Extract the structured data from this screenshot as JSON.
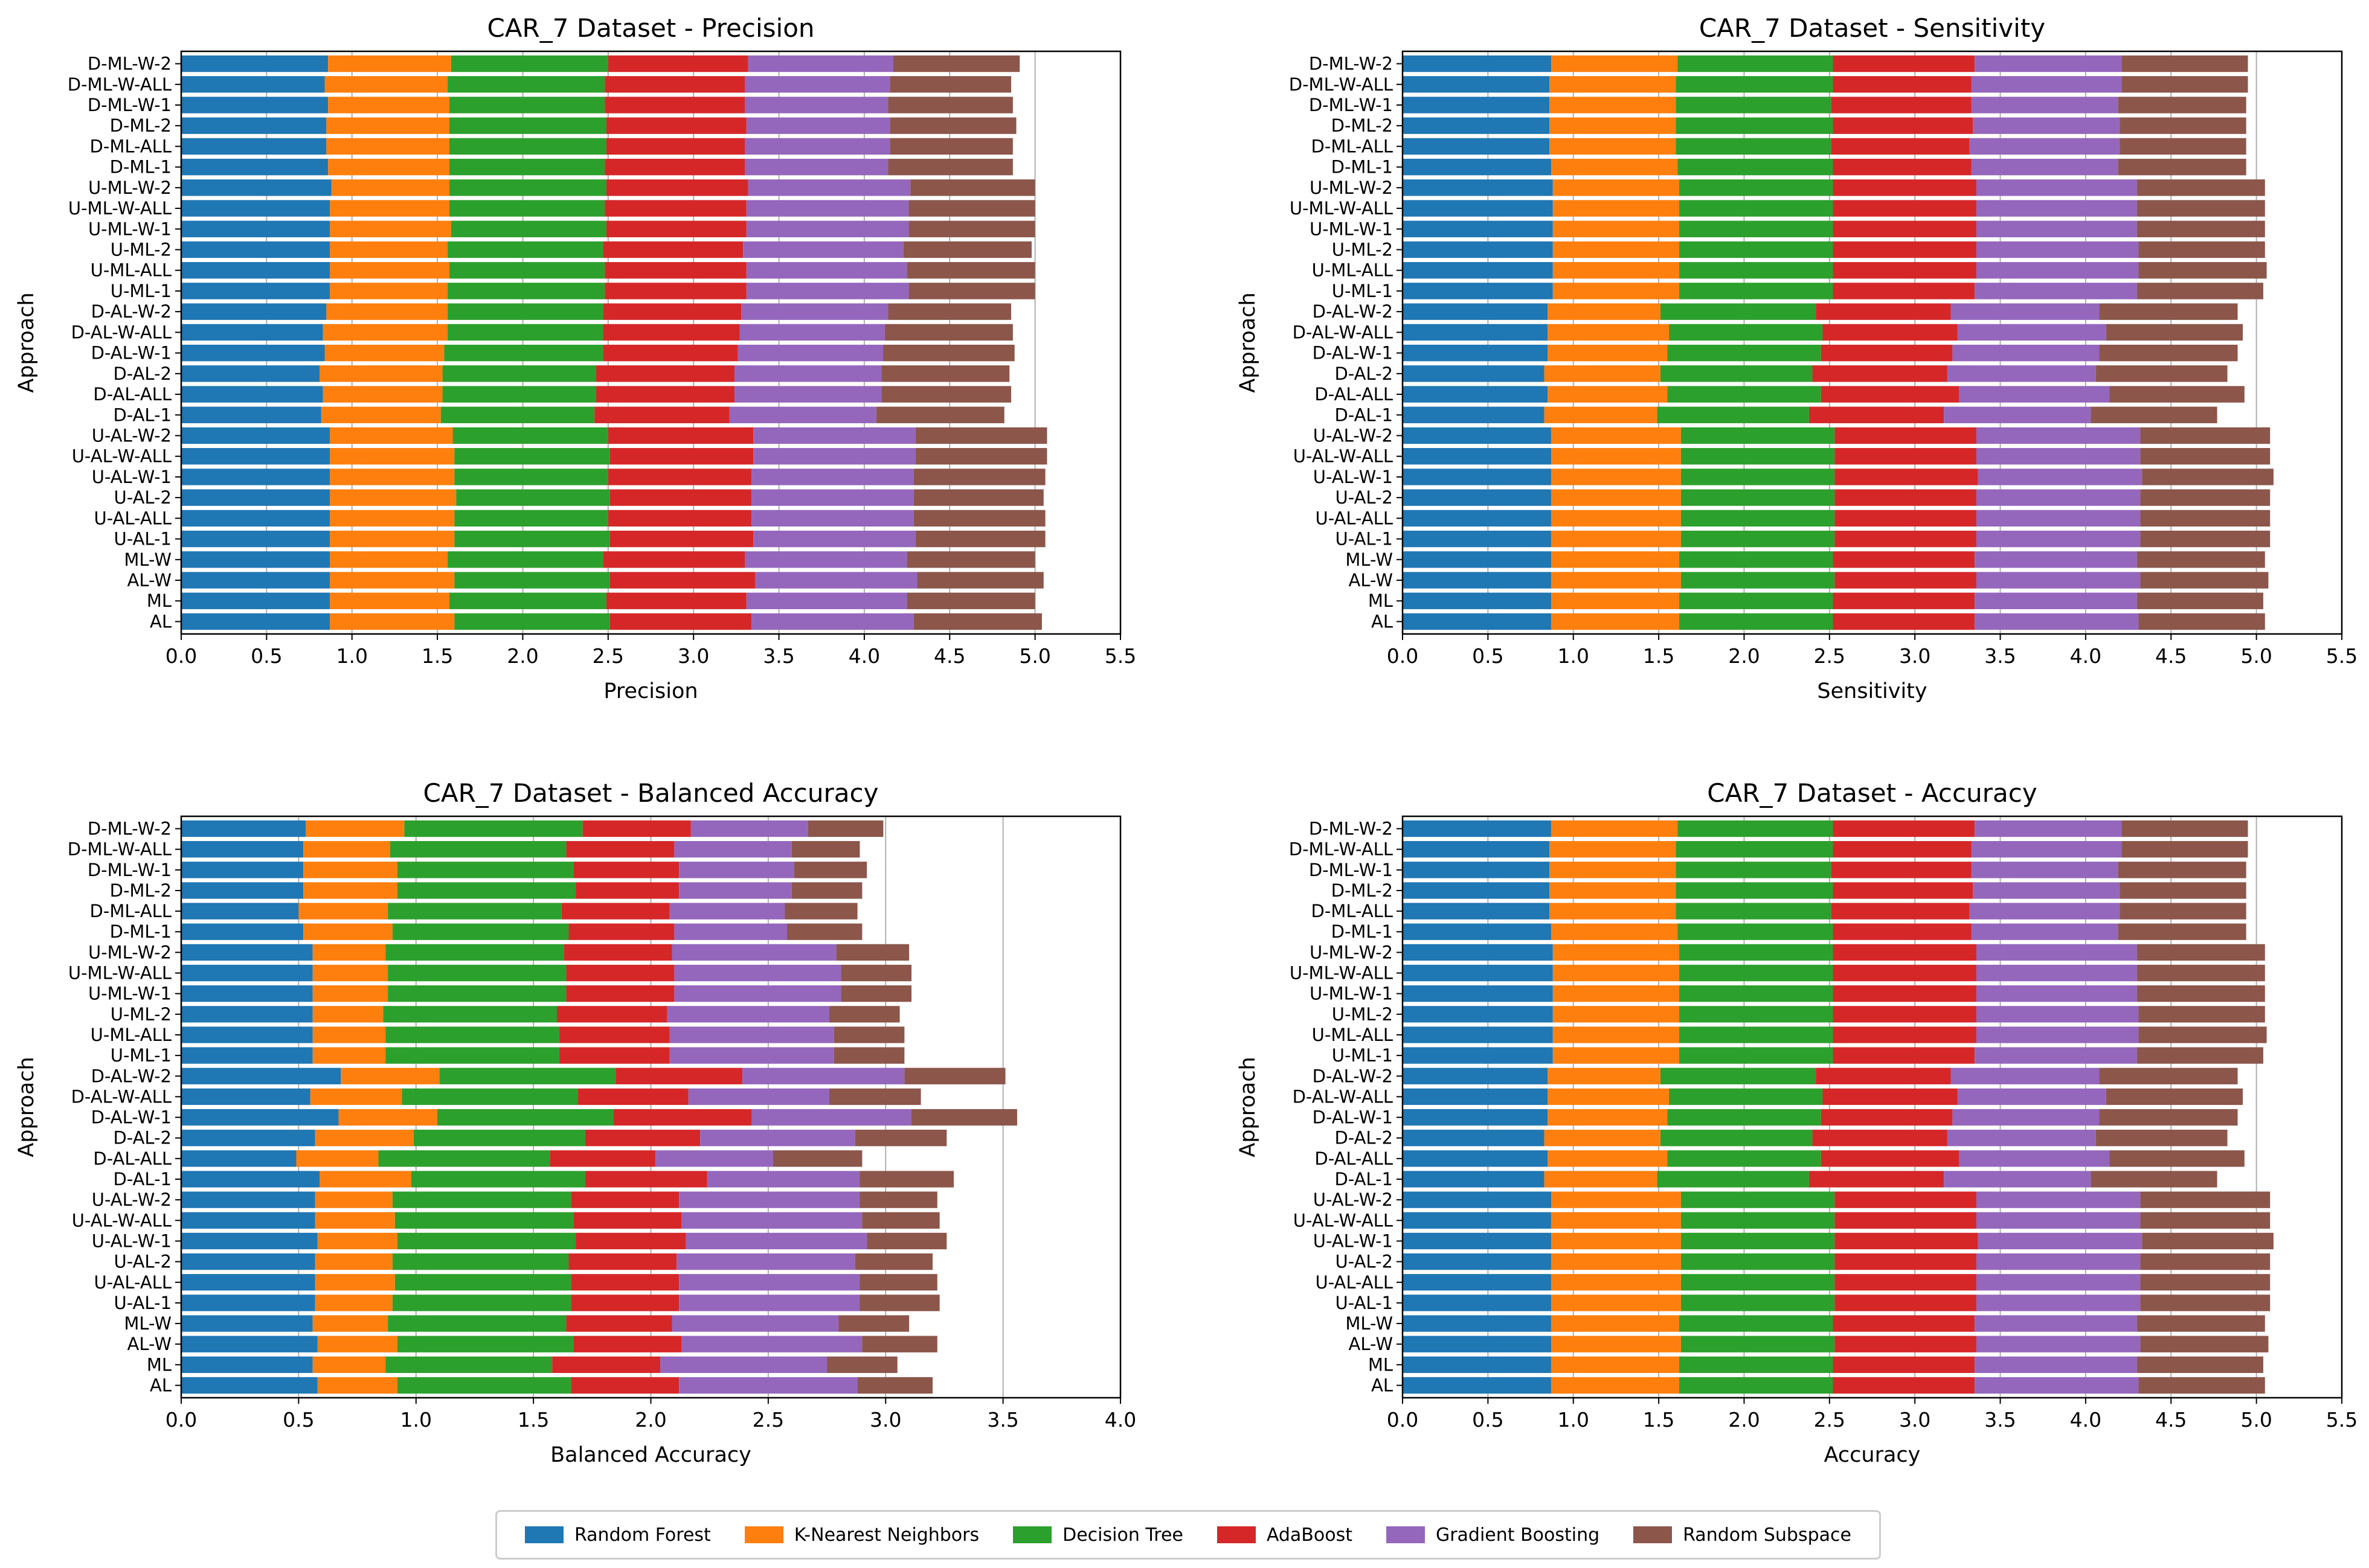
{
  "colors": {
    "Random Forest": "#1f77b4",
    "K-Nearest Neighbors": "#ff7f0e",
    "Decision Tree": "#2ca02c",
    "AdaBoost": "#d62728",
    "Gradient Boosting": "#9467bd",
    "Random Subspace": "#8c564b"
  },
  "legend": [
    "Random Forest",
    "K-Nearest Neighbors",
    "Decision Tree",
    "AdaBoost",
    "Gradient Boosting",
    "Random Subspace"
  ],
  "chart_data": [
    {
      "type": "bar",
      "orientation": "horizontal",
      "stacked": true,
      "title": "CAR_7 Dataset - Precision",
      "xlabel": "Precision",
      "ylabel": "Approach",
      "xlim": [
        0,
        5.5
      ],
      "xticks": [
        "0.0",
        "0.5",
        "1.0",
        "1.5",
        "2.0",
        "2.5",
        "3.0",
        "3.5",
        "4.0",
        "4.5",
        "5.0",
        "5.5"
      ],
      "grid": "vertical",
      "categories": [
        "D-ML-W-2",
        "D-ML-W-ALL",
        "D-ML-W-1",
        "D-ML-2",
        "D-ML-ALL",
        "D-ML-1",
        "U-ML-W-2",
        "U-ML-W-ALL",
        "U-ML-W-1",
        "U-ML-2",
        "U-ML-ALL",
        "U-ML-1",
        "D-AL-W-2",
        "D-AL-W-ALL",
        "D-AL-W-1",
        "D-AL-2",
        "D-AL-ALL",
        "D-AL-1",
        "U-AL-W-2",
        "U-AL-W-ALL",
        "U-AL-W-1",
        "U-AL-2",
        "U-AL-ALL",
        "U-AL-1",
        "ML-W",
        "AL-W",
        "ML",
        "AL"
      ],
      "series": [
        {
          "name": "Random Forest",
          "values": [
            0.86,
            0.84,
            0.86,
            0.85,
            0.85,
            0.86,
            0.88,
            0.87,
            0.87,
            0.87,
            0.87,
            0.87,
            0.85,
            0.83,
            0.84,
            0.81,
            0.83,
            0.82,
            0.87,
            0.87,
            0.87,
            0.87,
            0.87,
            0.87,
            0.87,
            0.87,
            0.87,
            0.87
          ]
        },
        {
          "name": "K-Nearest Neighbors",
          "values": [
            0.72,
            0.72,
            0.71,
            0.72,
            0.72,
            0.71,
            0.69,
            0.7,
            0.71,
            0.69,
            0.7,
            0.69,
            0.71,
            0.73,
            0.7,
            0.72,
            0.7,
            0.7,
            0.72,
            0.73,
            0.73,
            0.74,
            0.73,
            0.73,
            0.69,
            0.73,
            0.7,
            0.73
          ]
        },
        {
          "name": "Decision Tree",
          "values": [
            0.92,
            0.92,
            0.91,
            0.92,
            0.92,
            0.91,
            0.92,
            0.91,
            0.91,
            0.91,
            0.91,
            0.92,
            0.91,
            0.91,
            0.93,
            0.9,
            0.9,
            0.9,
            0.91,
            0.91,
            0.9,
            0.9,
            0.9,
            0.91,
            0.91,
            0.91,
            0.92,
            0.91
          ]
        },
        {
          "name": "AdaBoost",
          "values": [
            0.82,
            0.82,
            0.82,
            0.82,
            0.81,
            0.82,
            0.83,
            0.83,
            0.82,
            0.82,
            0.83,
            0.83,
            0.81,
            0.8,
            0.79,
            0.81,
            0.81,
            0.79,
            0.85,
            0.84,
            0.84,
            0.83,
            0.84,
            0.84,
            0.83,
            0.85,
            0.82,
            0.83
          ]
        },
        {
          "name": "Gradient Boosting",
          "values": [
            0.85,
            0.85,
            0.84,
            0.84,
            0.85,
            0.84,
            0.95,
            0.95,
            0.95,
            0.94,
            0.94,
            0.95,
            0.86,
            0.85,
            0.85,
            0.86,
            0.86,
            0.86,
            0.95,
            0.95,
            0.95,
            0.95,
            0.95,
            0.95,
            0.95,
            0.95,
            0.94,
            0.95
          ]
        },
        {
          "name": "Random Subspace",
          "values": [
            0.74,
            0.71,
            0.73,
            0.74,
            0.72,
            0.73,
            0.73,
            0.74,
            0.74,
            0.75,
            0.75,
            0.74,
            0.72,
            0.75,
            0.77,
            0.75,
            0.76,
            0.75,
            0.77,
            0.77,
            0.77,
            0.76,
            0.77,
            0.76,
            0.75,
            0.74,
            0.75,
            0.75
          ]
        }
      ]
    },
    {
      "type": "bar",
      "orientation": "horizontal",
      "stacked": true,
      "title": "CAR_7 Dataset - Sensitivity",
      "xlabel": "Sensitivity",
      "ylabel": "Approach",
      "xlim": [
        0,
        5.5
      ],
      "xticks": [
        "0.0",
        "0.5",
        "1.0",
        "1.5",
        "2.0",
        "2.5",
        "3.0",
        "3.5",
        "4.0",
        "4.5",
        "5.0",
        "5.5"
      ],
      "grid": "vertical",
      "categories": [
        "D-ML-W-2",
        "D-ML-W-ALL",
        "D-ML-W-1",
        "D-ML-2",
        "D-ML-ALL",
        "D-ML-1",
        "U-ML-W-2",
        "U-ML-W-ALL",
        "U-ML-W-1",
        "U-ML-2",
        "U-ML-ALL",
        "U-ML-1",
        "D-AL-W-2",
        "D-AL-W-ALL",
        "D-AL-W-1",
        "D-AL-2",
        "D-AL-ALL",
        "D-AL-1",
        "U-AL-W-2",
        "U-AL-W-ALL",
        "U-AL-W-1",
        "U-AL-2",
        "U-AL-ALL",
        "U-AL-1",
        "ML-W",
        "AL-W",
        "ML",
        "AL"
      ],
      "series": [
        {
          "name": "Random Forest",
          "values": [
            0.87,
            0.86,
            0.86,
            0.86,
            0.86,
            0.87,
            0.88,
            0.88,
            0.88,
            0.88,
            0.88,
            0.88,
            0.85,
            0.85,
            0.85,
            0.83,
            0.85,
            0.83,
            0.87,
            0.87,
            0.87,
            0.87,
            0.87,
            0.87,
            0.87,
            0.87,
            0.87,
            0.87
          ]
        },
        {
          "name": "K-Nearest Neighbors",
          "values": [
            0.74,
            0.74,
            0.74,
            0.74,
            0.74,
            0.74,
            0.74,
            0.74,
            0.74,
            0.74,
            0.74,
            0.74,
            0.66,
            0.71,
            0.7,
            0.68,
            0.7,
            0.66,
            0.76,
            0.76,
            0.76,
            0.76,
            0.76,
            0.76,
            0.75,
            0.76,
            0.75,
            0.75
          ]
        },
        {
          "name": "Decision Tree",
          "values": [
            0.91,
            0.92,
            0.91,
            0.92,
            0.91,
            0.91,
            0.9,
            0.9,
            0.9,
            0.9,
            0.9,
            0.9,
            0.91,
            0.9,
            0.9,
            0.89,
            0.9,
            0.89,
            0.9,
            0.9,
            0.9,
            0.9,
            0.9,
            0.9,
            0.9,
            0.9,
            0.9,
            0.9
          ]
        },
        {
          "name": "AdaBoost",
          "values": [
            0.83,
            0.81,
            0.82,
            0.82,
            0.81,
            0.81,
            0.84,
            0.84,
            0.84,
            0.84,
            0.84,
            0.83,
            0.79,
            0.79,
            0.77,
            0.79,
            0.81,
            0.79,
            0.83,
            0.83,
            0.84,
            0.83,
            0.83,
            0.83,
            0.83,
            0.83,
            0.83,
            0.83
          ]
        },
        {
          "name": "Gradient Boosting",
          "values": [
            0.86,
            0.88,
            0.86,
            0.86,
            0.88,
            0.86,
            0.94,
            0.94,
            0.94,
            0.95,
            0.95,
            0.95,
            0.87,
            0.87,
            0.86,
            0.87,
            0.88,
            0.86,
            0.96,
            0.96,
            0.96,
            0.96,
            0.96,
            0.96,
            0.95,
            0.96,
            0.95,
            0.96
          ]
        },
        {
          "name": "Random Subspace",
          "values": [
            0.74,
            0.74,
            0.75,
            0.74,
            0.74,
            0.75,
            0.75,
            0.75,
            0.75,
            0.74,
            0.75,
            0.74,
            0.81,
            0.8,
            0.81,
            0.77,
            0.79,
            0.74,
            0.76,
            0.76,
            0.77,
            0.76,
            0.76,
            0.76,
            0.75,
            0.75,
            0.74,
            0.74
          ]
        }
      ]
    },
    {
      "type": "bar",
      "orientation": "horizontal",
      "stacked": true,
      "title": "CAR_7 Dataset - Balanced Accuracy",
      "xlabel": "Balanced Accuracy",
      "ylabel": "Approach",
      "xlim": [
        0,
        4.0
      ],
      "xticks": [
        "0.0",
        "0.5",
        "1.0",
        "1.5",
        "2.0",
        "2.5",
        "3.0",
        "3.5",
        "4.0"
      ],
      "grid": "vertical",
      "categories": [
        "D-ML-W-2",
        "D-ML-W-ALL",
        "D-ML-W-1",
        "D-ML-2",
        "D-ML-ALL",
        "D-ML-1",
        "U-ML-W-2",
        "U-ML-W-ALL",
        "U-ML-W-1",
        "U-ML-2",
        "U-ML-ALL",
        "U-ML-1",
        "D-AL-W-2",
        "D-AL-W-ALL",
        "D-AL-W-1",
        "D-AL-2",
        "D-AL-ALL",
        "D-AL-1",
        "U-AL-W-2",
        "U-AL-W-ALL",
        "U-AL-W-1",
        "U-AL-2",
        "U-AL-ALL",
        "U-AL-1",
        "ML-W",
        "AL-W",
        "ML",
        "AL"
      ],
      "series": [
        {
          "name": "Random Forest",
          "values": [
            0.53,
            0.52,
            0.52,
            0.52,
            0.5,
            0.52,
            0.56,
            0.56,
            0.56,
            0.56,
            0.56,
            0.56,
            0.68,
            0.55,
            0.67,
            0.57,
            0.49,
            0.59,
            0.57,
            0.57,
            0.58,
            0.57,
            0.57,
            0.57,
            0.56,
            0.58,
            0.56,
            0.58
          ]
        },
        {
          "name": "K-Nearest Neighbors",
          "values": [
            0.42,
            0.37,
            0.4,
            0.4,
            0.38,
            0.38,
            0.31,
            0.32,
            0.32,
            0.3,
            0.31,
            0.31,
            0.42,
            0.39,
            0.42,
            0.42,
            0.35,
            0.39,
            0.33,
            0.34,
            0.34,
            0.33,
            0.34,
            0.33,
            0.32,
            0.34,
            0.31,
            0.34
          ]
        },
        {
          "name": "Decision Tree",
          "values": [
            0.76,
            0.75,
            0.75,
            0.76,
            0.74,
            0.75,
            0.76,
            0.76,
            0.76,
            0.74,
            0.74,
            0.74,
            0.75,
            0.75,
            0.75,
            0.73,
            0.73,
            0.74,
            0.76,
            0.76,
            0.76,
            0.75,
            0.75,
            0.76,
            0.76,
            0.75,
            0.71,
            0.74
          ]
        },
        {
          "name": "AdaBoost",
          "values": [
            0.46,
            0.46,
            0.45,
            0.44,
            0.46,
            0.45,
            0.46,
            0.46,
            0.46,
            0.47,
            0.47,
            0.47,
            0.54,
            0.47,
            0.59,
            0.49,
            0.45,
            0.52,
            0.46,
            0.46,
            0.47,
            0.46,
            0.46,
            0.46,
            0.45,
            0.46,
            0.46,
            0.46
          ]
        },
        {
          "name": "Gradient Boosting",
          "values": [
            0.5,
            0.5,
            0.49,
            0.48,
            0.49,
            0.48,
            0.7,
            0.71,
            0.71,
            0.69,
            0.7,
            0.7,
            0.69,
            0.6,
            0.68,
            0.66,
            0.5,
            0.65,
            0.77,
            0.77,
            0.77,
            0.76,
            0.77,
            0.77,
            0.71,
            0.77,
            0.71,
            0.76
          ]
        },
        {
          "name": "Random Subspace",
          "values": [
            0.32,
            0.29,
            0.31,
            0.3,
            0.31,
            0.32,
            0.31,
            0.3,
            0.3,
            0.3,
            0.3,
            0.3,
            0.43,
            0.39,
            0.45,
            0.39,
            0.38,
            0.4,
            0.33,
            0.33,
            0.34,
            0.33,
            0.33,
            0.34,
            0.3,
            0.32,
            0.3,
            0.32
          ]
        }
      ]
    },
    {
      "type": "bar",
      "orientation": "horizontal",
      "stacked": true,
      "title": "CAR_7 Dataset - Accuracy",
      "xlabel": "Accuracy",
      "ylabel": "Approach",
      "xlim": [
        0,
        5.5
      ],
      "xticks": [
        "0.0",
        "0.5",
        "1.0",
        "1.5",
        "2.0",
        "2.5",
        "3.0",
        "3.5",
        "4.0",
        "4.5",
        "5.0",
        "5.5"
      ],
      "grid": "vertical",
      "categories": [
        "D-ML-W-2",
        "D-ML-W-ALL",
        "D-ML-W-1",
        "D-ML-2",
        "D-ML-ALL",
        "D-ML-1",
        "U-ML-W-2",
        "U-ML-W-ALL",
        "U-ML-W-1",
        "U-ML-2",
        "U-ML-ALL",
        "U-ML-1",
        "D-AL-W-2",
        "D-AL-W-ALL",
        "D-AL-W-1",
        "D-AL-2",
        "D-AL-ALL",
        "D-AL-1",
        "U-AL-W-2",
        "U-AL-W-ALL",
        "U-AL-W-1",
        "U-AL-2",
        "U-AL-ALL",
        "U-AL-1",
        "ML-W",
        "AL-W",
        "ML",
        "AL"
      ],
      "series": [
        {
          "name": "Random Forest",
          "values": [
            0.87,
            0.86,
            0.86,
            0.86,
            0.86,
            0.87,
            0.88,
            0.88,
            0.88,
            0.88,
            0.88,
            0.88,
            0.85,
            0.85,
            0.85,
            0.83,
            0.85,
            0.83,
            0.87,
            0.87,
            0.87,
            0.87,
            0.87,
            0.87,
            0.87,
            0.87,
            0.87,
            0.87
          ]
        },
        {
          "name": "K-Nearest Neighbors",
          "values": [
            0.74,
            0.74,
            0.74,
            0.74,
            0.74,
            0.74,
            0.74,
            0.74,
            0.74,
            0.74,
            0.74,
            0.74,
            0.66,
            0.71,
            0.7,
            0.68,
            0.7,
            0.66,
            0.76,
            0.76,
            0.76,
            0.76,
            0.76,
            0.76,
            0.75,
            0.76,
            0.75,
            0.75
          ]
        },
        {
          "name": "Decision Tree",
          "values": [
            0.91,
            0.92,
            0.91,
            0.92,
            0.91,
            0.91,
            0.9,
            0.9,
            0.9,
            0.9,
            0.9,
            0.9,
            0.91,
            0.9,
            0.9,
            0.89,
            0.9,
            0.89,
            0.9,
            0.9,
            0.9,
            0.9,
            0.9,
            0.9,
            0.9,
            0.9,
            0.9,
            0.9
          ]
        },
        {
          "name": "AdaBoost",
          "values": [
            0.83,
            0.81,
            0.82,
            0.82,
            0.81,
            0.81,
            0.84,
            0.84,
            0.84,
            0.84,
            0.84,
            0.83,
            0.79,
            0.79,
            0.77,
            0.79,
            0.81,
            0.79,
            0.83,
            0.83,
            0.84,
            0.83,
            0.83,
            0.83,
            0.83,
            0.83,
            0.83,
            0.83
          ]
        },
        {
          "name": "Gradient Boosting",
          "values": [
            0.86,
            0.88,
            0.86,
            0.86,
            0.88,
            0.86,
            0.94,
            0.94,
            0.94,
            0.95,
            0.95,
            0.95,
            0.87,
            0.87,
            0.86,
            0.87,
            0.88,
            0.86,
            0.96,
            0.96,
            0.96,
            0.96,
            0.96,
            0.96,
            0.95,
            0.96,
            0.95,
            0.96
          ]
        },
        {
          "name": "Random Subspace",
          "values": [
            0.74,
            0.74,
            0.75,
            0.74,
            0.74,
            0.75,
            0.75,
            0.75,
            0.75,
            0.74,
            0.75,
            0.74,
            0.81,
            0.8,
            0.81,
            0.77,
            0.79,
            0.74,
            0.76,
            0.76,
            0.77,
            0.76,
            0.76,
            0.76,
            0.75,
            0.75,
            0.74,
            0.74
          ]
        }
      ]
    }
  ]
}
